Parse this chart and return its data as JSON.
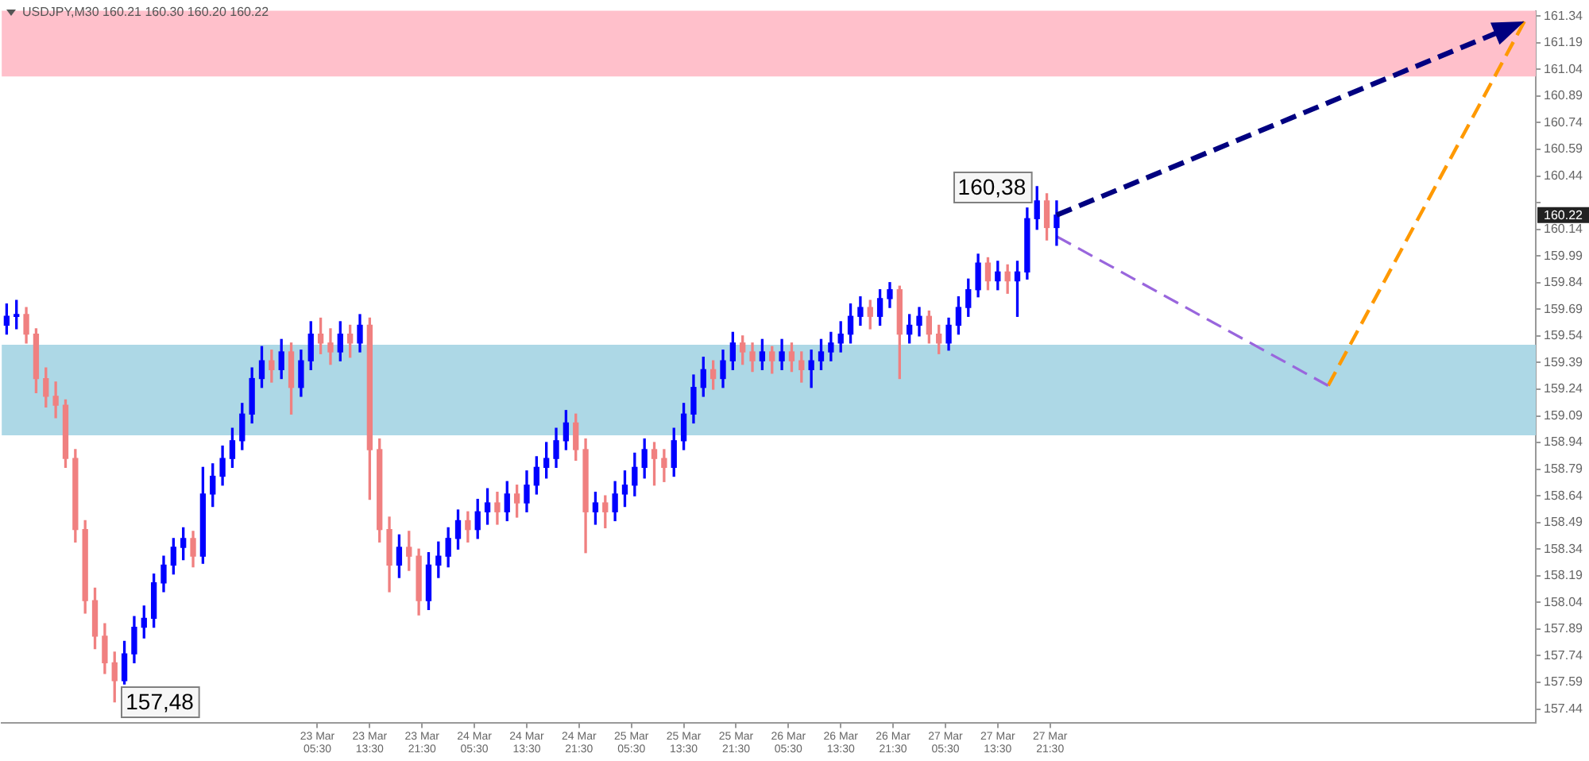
{
  "chart_data": {
    "type": "candlestick",
    "title": "USDJPY,M30 160.21 160.30 160.20 160.22",
    "x": [
      "--03-21T06:00",
      "--03-21T07:30",
      "--03-21T09:00",
      "--03-21T10:30",
      "--03-21T12:00",
      "--03-21T13:30",
      "--03-21T15:00",
      "--03-21T16:30",
      "--03-21T18:00",
      "--03-21T19:30",
      "--03-21T21:00",
      "--03-21T22:30",
      "--03-22T00:00",
      "--03-22T01:30",
      "--03-22T03:00",
      "--03-22T04:30",
      "--03-22T06:00",
      "--03-22T07:30",
      "--03-22T09:00",
      "--03-22T10:30",
      "--03-22T12:00",
      "--03-22T13:30",
      "--03-22T15:00",
      "--03-22T16:30",
      "--03-22T18:00",
      "--03-22T19:30",
      "--03-22T21:00",
      "--03-22T22:30",
      "--03-23T00:00",
      "--03-23T01:30",
      "--03-23T03:00",
      "--03-23T04:30",
      "--03-23T06:00",
      "--03-23T07:30",
      "--03-23T09:00",
      "--03-23T10:30",
      "--03-23T12:00",
      "--03-23T13:30",
      "--03-23T15:00",
      "--03-23T16:30",
      "--03-23T18:00",
      "--03-23T19:30",
      "--03-23T21:00",
      "--03-23T22:30",
      "--03-24T00:00",
      "--03-24T01:30",
      "--03-24T03:00",
      "--03-24T04:30",
      "--03-24T06:00",
      "--03-24T07:30",
      "--03-24T09:00",
      "--03-24T10:30",
      "--03-24T12:00",
      "--03-24T13:30",
      "--03-24T15:00",
      "--03-24T16:30",
      "--03-24T18:00",
      "--03-24T19:30",
      "--03-24T21:00",
      "--03-24T22:30",
      "--03-25T00:00",
      "--03-25T01:30",
      "--03-25T03:00",
      "--03-25T04:30",
      "--03-25T06:00",
      "--03-25T07:30",
      "--03-25T09:00",
      "--03-25T10:30",
      "--03-25T12:00",
      "--03-25T13:30",
      "--03-25T15:00",
      "--03-25T16:30",
      "--03-25T18:00",
      "--03-25T19:30",
      "--03-25T21:00",
      "--03-25T22:30",
      "--03-26T00:00",
      "--03-26T01:30",
      "--03-26T03:00",
      "--03-26T04:30",
      "--03-26T06:00",
      "--03-26T07:30",
      "--03-26T09:00",
      "--03-26T10:30",
      "--03-26T12:00",
      "--03-26T13:30",
      "--03-26T15:00",
      "--03-26T16:30",
      "--03-26T18:00",
      "--03-26T19:30",
      "--03-26T21:00",
      "--03-26T22:30",
      "--03-27T00:00",
      "--03-27T01:30",
      "--03-27T03:00",
      "--03-27T04:30",
      "--03-27T06:00",
      "--03-27T07:30",
      "--03-27T09:00",
      "--03-27T10:30",
      "--03-27T12:00",
      "--03-27T13:30",
      "--03-27T15:00",
      "--03-27T16:30",
      "--03-27T18:00",
      "--03-27T19:30",
      "--03-27T21:00",
      "--03-27T22:30"
    ],
    "ohlc": [
      [
        159.6,
        159.72,
        159.55,
        159.65
      ],
      [
        159.65,
        159.74,
        159.58,
        159.66
      ],
      [
        159.66,
        159.7,
        159.5,
        159.55
      ],
      [
        159.55,
        159.58,
        159.22,
        159.3
      ],
      [
        159.3,
        159.36,
        159.14,
        159.2
      ],
      [
        159.2,
        159.28,
        159.08,
        159.15
      ],
      [
        159.15,
        159.18,
        158.8,
        158.85
      ],
      [
        158.85,
        158.9,
        158.38,
        158.45
      ],
      [
        158.45,
        158.5,
        157.98,
        158.05
      ],
      [
        158.05,
        158.12,
        157.78,
        157.85
      ],
      [
        157.85,
        157.92,
        157.64,
        157.7
      ],
      [
        157.7,
        157.76,
        157.48,
        157.6
      ],
      [
        157.6,
        157.82,
        157.58,
        157.75
      ],
      [
        157.75,
        157.96,
        157.7,
        157.9
      ],
      [
        157.9,
        158.02,
        157.84,
        157.95
      ],
      [
        157.95,
        158.2,
        157.9,
        158.15
      ],
      [
        158.15,
        158.3,
        158.1,
        158.25
      ],
      [
        158.25,
        158.4,
        158.2,
        158.35
      ],
      [
        158.35,
        158.46,
        158.28,
        158.4
      ],
      [
        158.4,
        158.44,
        158.24,
        158.3
      ],
      [
        158.3,
        158.8,
        158.26,
        158.65
      ],
      [
        158.65,
        158.82,
        158.58,
        158.75
      ],
      [
        158.75,
        158.92,
        158.7,
        158.85
      ],
      [
        158.85,
        159.02,
        158.8,
        158.95
      ],
      [
        158.95,
        159.16,
        158.9,
        159.1
      ],
      [
        159.1,
        159.36,
        159.05,
        159.3
      ],
      [
        159.3,
        159.48,
        159.25,
        159.4
      ],
      [
        159.4,
        159.46,
        159.28,
        159.35
      ],
      [
        159.35,
        159.52,
        159.3,
        159.45
      ],
      [
        159.45,
        159.5,
        159.1,
        159.25
      ],
      [
        159.25,
        159.46,
        159.2,
        159.4
      ],
      [
        159.4,
        159.62,
        159.35,
        159.55
      ],
      [
        159.55,
        159.64,
        159.44,
        159.5
      ],
      [
        159.5,
        159.58,
        159.38,
        159.45
      ],
      [
        159.45,
        159.62,
        159.4,
        159.55
      ],
      [
        159.55,
        159.6,
        159.42,
        159.5
      ],
      [
        159.5,
        159.66,
        159.45,
        159.6
      ],
      [
        159.6,
        159.64,
        158.62,
        158.9
      ],
      [
        158.9,
        158.96,
        158.38,
        158.45
      ],
      [
        158.45,
        158.52,
        158.1,
        158.25
      ],
      [
        158.25,
        158.42,
        158.18,
        158.35
      ],
      [
        158.35,
        158.44,
        158.22,
        158.3
      ],
      [
        158.3,
        158.34,
        157.97,
        158.05
      ],
      [
        158.05,
        158.32,
        158.0,
        158.25
      ],
      [
        158.25,
        158.38,
        158.18,
        158.3
      ],
      [
        158.3,
        158.46,
        158.24,
        158.4
      ],
      [
        158.4,
        158.56,
        158.34,
        158.5
      ],
      [
        158.5,
        158.55,
        158.38,
        158.45
      ],
      [
        158.45,
        158.62,
        158.4,
        158.55
      ],
      [
        158.55,
        158.68,
        158.48,
        158.6
      ],
      [
        158.6,
        158.66,
        158.48,
        158.55
      ],
      [
        158.55,
        158.72,
        158.5,
        158.65
      ],
      [
        158.65,
        158.7,
        158.52,
        158.6
      ],
      [
        158.6,
        158.78,
        158.55,
        158.7
      ],
      [
        158.7,
        158.86,
        158.65,
        158.8
      ],
      [
        158.8,
        158.94,
        158.74,
        158.85
      ],
      [
        158.85,
        159.02,
        158.8,
        158.95
      ],
      [
        158.95,
        159.12,
        158.9,
        159.05
      ],
      [
        159.05,
        159.1,
        158.84,
        158.9
      ],
      [
        158.9,
        158.96,
        158.32,
        158.55
      ],
      [
        158.55,
        158.66,
        158.48,
        158.6
      ],
      [
        158.6,
        158.64,
        158.46,
        158.55
      ],
      [
        158.55,
        158.72,
        158.5,
        158.65
      ],
      [
        158.65,
        158.78,
        158.58,
        158.7
      ],
      [
        158.7,
        158.88,
        158.64,
        158.8
      ],
      [
        158.8,
        158.96,
        158.74,
        158.9
      ],
      [
        158.9,
        158.94,
        158.7,
        158.85
      ],
      [
        158.85,
        158.9,
        158.72,
        158.8
      ],
      [
        158.8,
        159.02,
        158.75,
        158.95
      ],
      [
        158.95,
        159.16,
        158.9,
        159.1
      ],
      [
        159.1,
        159.32,
        159.05,
        159.25
      ],
      [
        159.25,
        159.42,
        159.2,
        159.35
      ],
      [
        159.35,
        159.4,
        159.24,
        159.3
      ],
      [
        159.3,
        159.46,
        159.25,
        159.4
      ],
      [
        159.4,
        159.56,
        159.35,
        159.5
      ],
      [
        159.5,
        159.54,
        159.38,
        159.45
      ],
      [
        159.45,
        159.5,
        159.34,
        159.4
      ],
      [
        159.4,
        159.52,
        159.35,
        159.45
      ],
      [
        159.45,
        159.48,
        159.33,
        159.4
      ],
      [
        159.4,
        159.52,
        159.35,
        159.45
      ],
      [
        159.45,
        159.5,
        159.34,
        159.4
      ],
      [
        159.4,
        159.45,
        159.28,
        159.35
      ],
      [
        159.35,
        159.46,
        159.25,
        159.4
      ],
      [
        159.4,
        159.52,
        159.35,
        159.45
      ],
      [
        159.45,
        159.56,
        159.4,
        159.5
      ],
      [
        159.5,
        159.62,
        159.45,
        159.55
      ],
      [
        159.55,
        159.72,
        159.5,
        159.65
      ],
      [
        159.65,
        159.76,
        159.6,
        159.7
      ],
      [
        159.7,
        159.74,
        159.58,
        159.65
      ],
      [
        159.65,
        159.8,
        159.6,
        159.75
      ],
      [
        159.75,
        159.84,
        159.7,
        159.8
      ],
      [
        159.8,
        159.82,
        159.3,
        159.55
      ],
      [
        159.55,
        159.66,
        159.5,
        159.6
      ],
      [
        159.6,
        159.7,
        159.54,
        159.65
      ],
      [
        159.65,
        159.68,
        159.5,
        159.55
      ],
      [
        159.55,
        159.6,
        159.44,
        159.5
      ],
      [
        159.5,
        159.64,
        159.46,
        159.6
      ],
      [
        159.6,
        159.76,
        159.55,
        159.7
      ],
      [
        159.7,
        159.86,
        159.65,
        159.8
      ],
      [
        159.8,
        160.0,
        159.76,
        159.95
      ],
      [
        159.95,
        159.98,
        159.8,
        159.85
      ],
      [
        159.85,
        159.96,
        159.8,
        159.9
      ],
      [
        159.9,
        159.94,
        159.78,
        159.85
      ],
      [
        159.85,
        159.96,
        159.65,
        159.9
      ],
      [
        159.9,
        160.26,
        159.86,
        160.2
      ],
      [
        160.2,
        160.38,
        160.14,
        160.3
      ],
      [
        160.3,
        160.34,
        160.08,
        160.15
      ],
      [
        160.15,
        160.3,
        160.05,
        160.22
      ]
    ],
    "colors": [
      "#0000ff",
      "#0000ff",
      "#f08080",
      "#f08080",
      "#f08080",
      "#f08080",
      "#f08080",
      "#f08080",
      "#f08080",
      "#f08080",
      "#f08080",
      "#f08080",
      "#0000ff",
      "#0000ff",
      "#0000ff",
      "#0000ff",
      "#0000ff",
      "#0000ff",
      "#0000ff",
      "#f08080",
      "#0000ff",
      "#0000ff",
      "#0000ff",
      "#0000ff",
      "#0000ff",
      "#0000ff",
      "#0000ff",
      "#f08080",
      "#0000ff",
      "#f08080",
      "#0000ff",
      "#0000ff",
      "#f08080",
      "#f08080",
      "#0000ff",
      "#f08080",
      "#0000ff",
      "#f08080",
      "#f08080",
      "#f08080",
      "#0000ff",
      "#f08080",
      "#f08080",
      "#0000ff",
      "#0000ff",
      "#0000ff",
      "#0000ff",
      "#f08080",
      "#0000ff",
      "#0000ff",
      "#f08080",
      "#0000ff",
      "#f08080",
      "#0000ff",
      "#0000ff",
      "#0000ff",
      "#0000ff",
      "#0000ff",
      "#f08080",
      "#f08080",
      "#0000ff",
      "#f08080",
      "#0000ff",
      "#0000ff",
      "#0000ff",
      "#0000ff",
      "#f08080",
      "#f08080",
      "#0000ff",
      "#0000ff",
      "#0000ff",
      "#0000ff",
      "#f08080",
      "#0000ff",
      "#0000ff",
      "#f08080",
      "#f08080",
      "#0000ff",
      "#f08080",
      "#0000ff",
      "#f08080",
      "#f08080",
      "#0000ff",
      "#0000ff",
      "#0000ff",
      "#0000ff",
      "#0000ff",
      "#0000ff",
      "#f08080",
      "#0000ff",
      "#0000ff",
      "#f08080",
      "#0000ff",
      "#0000ff",
      "#f08080",
      "#f08080",
      "#0000ff",
      "#0000ff",
      "#0000ff",
      "#0000ff",
      "#f08080",
      "#0000ff",
      "#f08080",
      "#0000ff",
      "#0000ff",
      "#0000ff",
      "#f08080",
      "#0000ff"
    ],
    "series": [
      {
        "type": "line",
        "color": "#9966dd",
        "line_style": "dashed",
        "x": [
          "--03-27T22:30",
          "--03-29T16:00"
        ],
        "values": [
          160.1,
          159.26
        ]
      },
      {
        "type": "line",
        "color": "#ff9900",
        "line_style": "dashed",
        "x": [
          "--03-29T16:00",
          "--03-30T22:00"
        ],
        "values": [
          159.26,
          161.31
        ]
      }
    ],
    "bands": [
      {
        "axis": "y",
        "from": 161.0,
        "to": 161.37,
        "color": "#ffc0cb"
      },
      {
        "axis": "y",
        "from": 158.98,
        "to": 159.49,
        "color": "#add8e6"
      }
    ],
    "annotations": [
      {
        "text": "160,38",
        "x": "--03-27T19:30",
        "y": 160.38
      },
      {
        "text": "157,48",
        "x": "--03-21T22:30",
        "y": 157.48
      },
      {
        "text": "160.22",
        "y": 160.22
      }
    ],
    "xlim": [
      "--03-21T05:15",
      "--03-30T23:45"
    ],
    "xticks": [
      {
        "value": "--03-23T05:30",
        "label": "23 Mar 05:30"
      },
      {
        "value": "--03-23T13:30",
        "label": "23 Mar 13:30"
      },
      {
        "value": "--03-23T21:30",
        "label": "23 Mar 21:30"
      },
      {
        "value": "--03-24T05:30",
        "label": "24 Mar 05:30"
      },
      {
        "value": "--03-24T13:30",
        "label": "24 Mar 13:30"
      },
      {
        "value": "--03-24T21:30",
        "label": "24 Mar 21:30"
      },
      {
        "value": "--03-25T05:30",
        "label": "25 Mar 05:30"
      },
      {
        "value": "--03-25T13:30",
        "label": "25 Mar 13:30"
      },
      {
        "value": "--03-25T21:30",
        "label": "25 Mar 21:30"
      },
      {
        "value": "--03-26T05:30",
        "label": "26 Mar 05:30"
      },
      {
        "value": "--03-26T13:30",
        "label": "26 Mar 13:30"
      },
      {
        "value": "--03-26T21:30",
        "label": "26 Mar 21:30"
      },
      {
        "value": "--03-27T05:30",
        "label": "27 Mar 05:30"
      },
      {
        "value": "--03-27T13:30",
        "label": "27 Mar 13:30"
      },
      {
        "value": "--03-27T21:30",
        "label": "27 Mar 21:30"
      }
    ],
    "ylim": [
      157.36,
      161.37
    ],
    "yticks": [
      157.44,
      157.59,
      157.74,
      157.89,
      158.04,
      158.19,
      158.34,
      158.49,
      158.64,
      158.79,
      158.94,
      159.09,
      159.24,
      159.39,
      159.54,
      159.69,
      159.84,
      159.99,
      160.14,
      {
        "value": 160.29,
        "label": null
      },
      160.44,
      160.59,
      160.74,
      160.89,
      161.04,
      161.19,
      161.34
    ],
    "grid": false,
    "legend": false
  }
}
